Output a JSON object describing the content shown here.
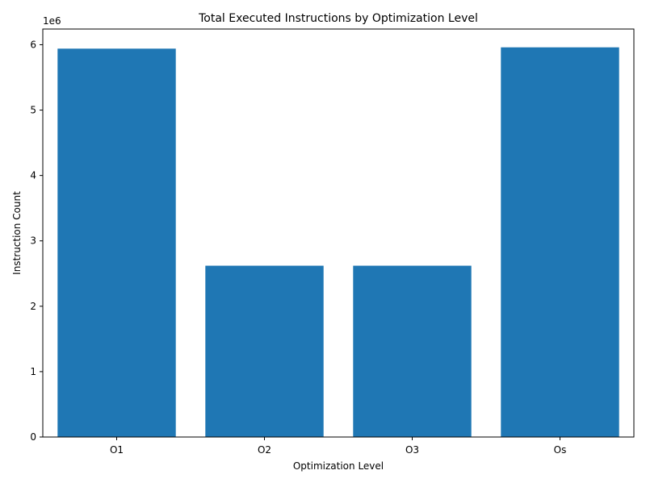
{
  "chart_data": {
    "type": "bar",
    "title": "Total Executed Instructions by Optimization Level",
    "xlabel": "Optimization Level",
    "ylabel": "Instruction Count",
    "categories": [
      "O1",
      "O2",
      "O3",
      "Os"
    ],
    "values": [
      5940000,
      2620000,
      2620000,
      5960000
    ],
    "ylim": [
      0,
      6240000
    ],
    "yticks": [
      0,
      1000000,
      2000000,
      3000000,
      4000000,
      5000000,
      6000000
    ],
    "ytick_labels": [
      "0",
      "1",
      "2",
      "3",
      "4",
      "5",
      "6"
    ],
    "offset_label": "1e6",
    "grid": false,
    "legend": "none",
    "bar_color": "#1f77b4"
  }
}
